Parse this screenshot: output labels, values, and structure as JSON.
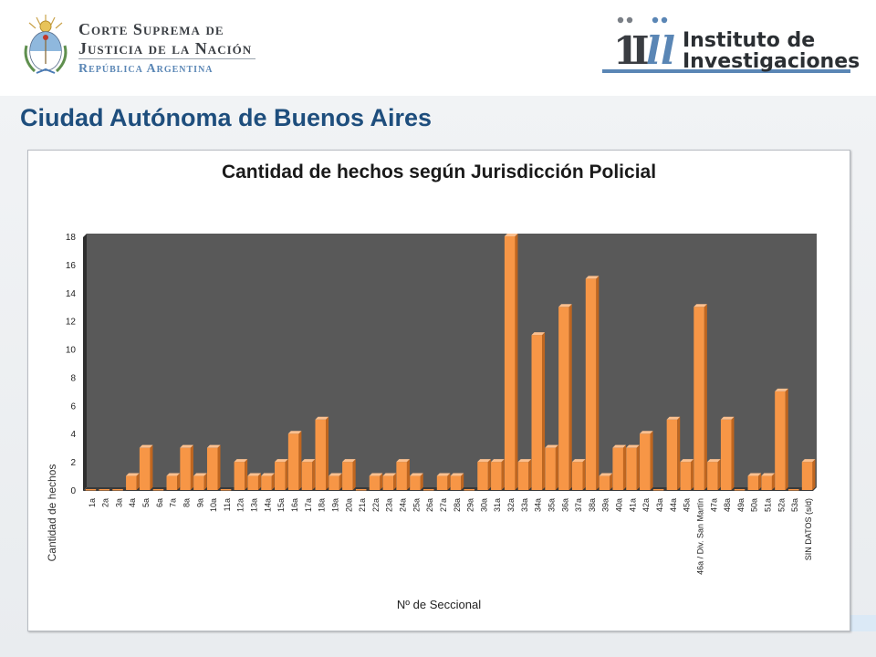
{
  "header": {
    "csjn": {
      "line1": "Corte Suprema de",
      "line2": "Justicia de la Nación",
      "line3": "República Argentina"
    },
    "institute": {
      "line1": "Instituto de",
      "line2": "Investigaciones"
    }
  },
  "page_title": "Ciudad Autónoma de Buenos Aires",
  "colors": {
    "bar": "#f79646",
    "bar_dark": "#c0661f",
    "plot_bg": "#595959",
    "title_blue": "#1e4e7d"
  },
  "chart_data": {
    "type": "bar",
    "title": "Cantidad de hechos según Jurisdicción Policial",
    "xlabel": "Nº de Seccional",
    "ylabel": "Cantidad de hechos",
    "ylim": [
      0,
      18
    ],
    "yticks": [
      0,
      2,
      4,
      6,
      8,
      10,
      12,
      14,
      16,
      18
    ],
    "grid": false,
    "categories": [
      "1a",
      "2a",
      "3a",
      "4a",
      "5a",
      "6a",
      "7a",
      "8a",
      "9a",
      "10a",
      "11a",
      "12a",
      "13a",
      "14a",
      "15a",
      "16a",
      "17a",
      "18a",
      "19a",
      "20a",
      "21a",
      "22a",
      "23a",
      "24a",
      "25a",
      "26a",
      "27a",
      "28a",
      "29a",
      "30a",
      "31a",
      "32a",
      "33a",
      "34a",
      "35a",
      "36a",
      "37a",
      "38a",
      "39a",
      "40a",
      "41a",
      "42a",
      "43a",
      "44a",
      "45a",
      "46a / Div. San Martín",
      "47a",
      "48a",
      "49a",
      "50a",
      "51a",
      "52a",
      "53a",
      "SIN DATOS (s/d)"
    ],
    "values": [
      0,
      0,
      0,
      1,
      3,
      0,
      1,
      3,
      1,
      3,
      0,
      2,
      1,
      1,
      2,
      4,
      2,
      5,
      1,
      2,
      0,
      1,
      1,
      2,
      1,
      0,
      1,
      1,
      0,
      2,
      2,
      18,
      2,
      11,
      3,
      13,
      2,
      15,
      1,
      3,
      3,
      4,
      0,
      5,
      2,
      13,
      2,
      5,
      0,
      1,
      1,
      7,
      0,
      2
    ]
  }
}
